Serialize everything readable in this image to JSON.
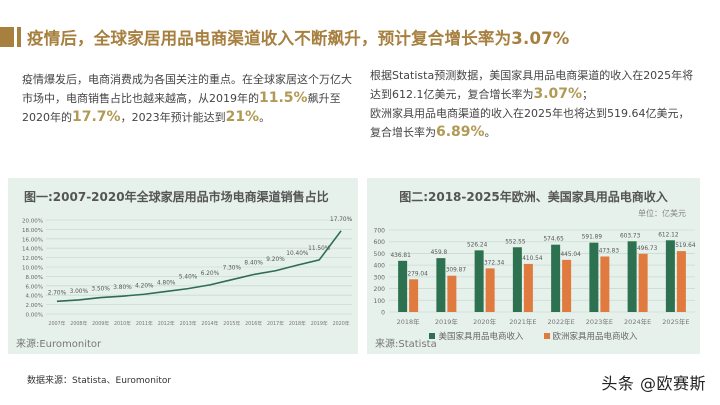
{
  "header": {
    "title": "疫情后，全球家居用品电商渠道收入不断飙升，预计复合增长率为3.07%",
    "accent_color": "#a77f3f"
  },
  "left_paragraph": {
    "part1": "疫情爆发后，电商消费成为各国关注的重点。在全球家居这个万亿大市场中，电商销售占比也越来越高，从2019年的",
    "hl1": "11.5%",
    "part2": "飙升至2020年的",
    "hl2": "17.7%",
    "part3": "，2023年预计能达到",
    "hl3": "21%",
    "part4": "。"
  },
  "right_paragraph": {
    "part1": "根据Statista预测数据，美国家具用品电商渠道的收入在2025年将达到612.1亿美元，复合增长率为",
    "hl1": "3.07%",
    "part2": "；",
    "part3": "欧洲家具用品电商渠道的收入在2025年也将达到519.64亿美元，复合增长率为",
    "hl2": "6.89%",
    "part4": "。"
  },
  "chart_data": [
    {
      "type": "line",
      "title": "图一:2007-2020年全球家居用品市场电商渠道销售占比",
      "source": "来源:Euromonitor",
      "categories": [
        "2007年",
        "2008年",
        "2009年",
        "2010年",
        "2011年",
        "2012年",
        "2013年",
        "2014年",
        "2015年",
        "2016年",
        "2017年",
        "2018年",
        "2019年",
        "2020年"
      ],
      "values": [
        2.7,
        3.0,
        3.5,
        3.8,
        4.2,
        4.8,
        5.4,
        6.2,
        7.3,
        8.4,
        9.2,
        10.4,
        11.5,
        17.7
      ],
      "labels": [
        "2.70%",
        "3.00%",
        "3.50%",
        "3.80%",
        "4.20%",
        "4.80%",
        "5.40%",
        "6.20%",
        "7.30%",
        "8.40%",
        "9.20%",
        "10.40%",
        "11.50%",
        "17.70%"
      ],
      "yticks": [
        "0.00%",
        "2.00%",
        "4.00%",
        "6.00%",
        "8.00%",
        "10.00%",
        "12.00%",
        "14.00%",
        "16.00%",
        "18.00%",
        "20.00%"
      ],
      "ylim": [
        0,
        20
      ],
      "xlabel": "",
      "ylabel": "",
      "line_color": "#2f6b55",
      "grid": true
    },
    {
      "type": "bar",
      "title": "图二:2018-2025年欧洲、美国家具用品电商收入",
      "unit": "单位：亿美元",
      "source": "来源:Statista",
      "categories": [
        "2018年",
        "2019年",
        "2020年",
        "2021年E",
        "2022年E",
        "2023年E",
        "2024年E",
        "2025年E"
      ],
      "series": [
        {
          "name": "美国家具用品电商收入",
          "color": "#2e7150",
          "values": [
            436.81,
            459.8,
            526.24,
            552.55,
            574.65,
            591.89,
            603.73,
            612.12
          ]
        },
        {
          "name": "欧洲家具用品电商收入",
          "color": "#e07a3f",
          "values": [
            279.04,
            309.87,
            372.34,
            410.54,
            445.04,
            473.83,
            496.73,
            519.64
          ]
        }
      ],
      "yticks": [
        "0",
        "100",
        "200",
        "300",
        "400",
        "500",
        "600",
        "700"
      ],
      "ylim": [
        0,
        700
      ],
      "grid": true,
      "legend_position": "bottom"
    }
  ],
  "footer": {
    "data_source": "数据来源：Statista、Euromonitor",
    "watermark": "头条 @欧赛斯"
  }
}
